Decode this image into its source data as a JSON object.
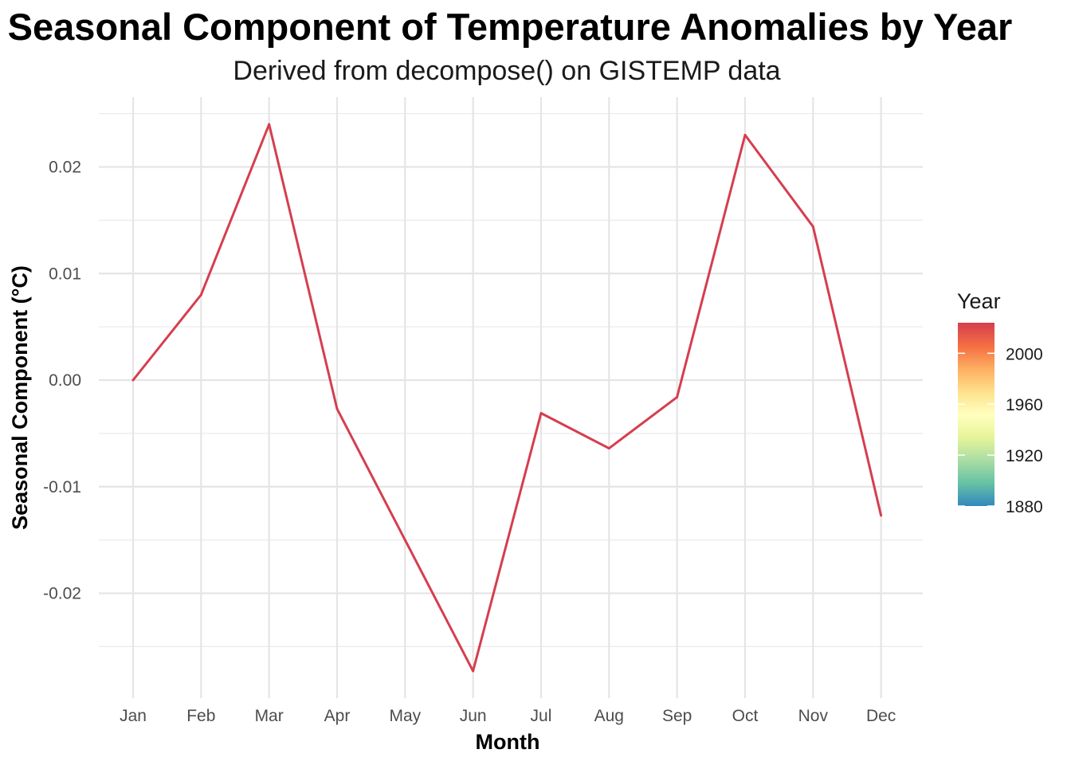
{
  "chart_data": {
    "type": "line",
    "title": "Seasonal Component of Temperature Anomalies by Year",
    "subtitle": "Derived from decompose() on GISTEMP data",
    "xlabel": "Month",
    "ylabel": "Seasonal Component (°C)",
    "categories": [
      "Jan",
      "Feb",
      "Mar",
      "Apr",
      "May",
      "Jun",
      "Jul",
      "Aug",
      "Sep",
      "Oct",
      "Nov",
      "Dec"
    ],
    "series": [
      {
        "values": [
          0.0,
          0.008,
          0.024,
          -0.0027,
          -0.015,
          -0.0273,
          -0.0031,
          -0.0064,
          -0.0016,
          0.023,
          0.0144,
          -0.0127
        ],
        "color": "#d53e4f"
      }
    ],
    "ylim": [
      -0.0295,
      0.0255
    ],
    "yticks": [
      -0.02,
      -0.01,
      0.0,
      0.01,
      0.02
    ],
    "ytick_labels": [
      "-0.02",
      "-0.01",
      "0.00",
      "0.01",
      "0.02"
    ],
    "grid": true,
    "legend": {
      "title": "Year",
      "type": "colorbar",
      "position": "right",
      "range": [
        1880,
        2024
      ],
      "breaks": [
        1880,
        1920,
        1960,
        2000
      ],
      "colors": [
        "#3288bd",
        "#66c2a5",
        "#abdda4",
        "#e6f598",
        "#ffffbf",
        "#fee08b",
        "#fdae61",
        "#f46d43",
        "#d53e4f"
      ]
    }
  }
}
